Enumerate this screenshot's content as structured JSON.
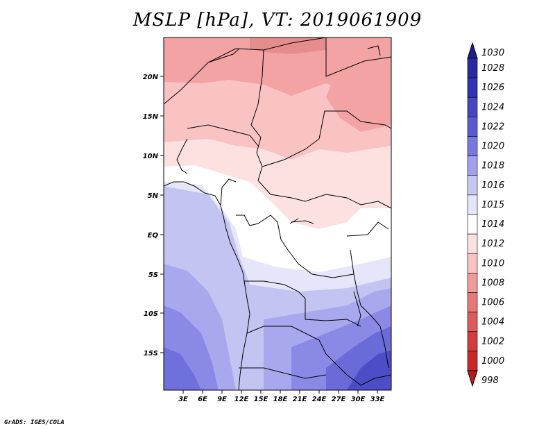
{
  "title": "MSLP [hPa], VT: 2019061909",
  "footer": "GrADS: IGES/COLA",
  "map": {
    "lat_labels": [
      "20N",
      "15N",
      "10N",
      "5N",
      "EQ",
      "5S",
      "10S",
      "15S"
    ],
    "lon_labels": [
      "3E",
      "6E",
      "9E",
      "12E",
      "15E",
      "18E",
      "21E",
      "24E",
      "27E",
      "30E",
      "33E"
    ]
  },
  "colorbar": {
    "levels": [
      "1030",
      "1028",
      "1026",
      "1024",
      "1022",
      "1020",
      "1018",
      "1016",
      "1015",
      "1014",
      "1012",
      "1010",
      "1008",
      "1006",
      "1004",
      "1002",
      "1000",
      "998"
    ],
    "colors": [
      "#1e1e8c",
      "#2828a0",
      "#3232b4",
      "#4646c3",
      "#5a5ad2",
      "#7878e1",
      "#a0a0ee",
      "#c8c8f5",
      "#e6e6fa",
      "#ffffff",
      "#fde1e1",
      "#fac3c3",
      "#f19a9a",
      "#e67878",
      "#dc5a5a",
      "#d23c3c",
      "#c82828",
      "#b41e1e"
    ]
  }
}
